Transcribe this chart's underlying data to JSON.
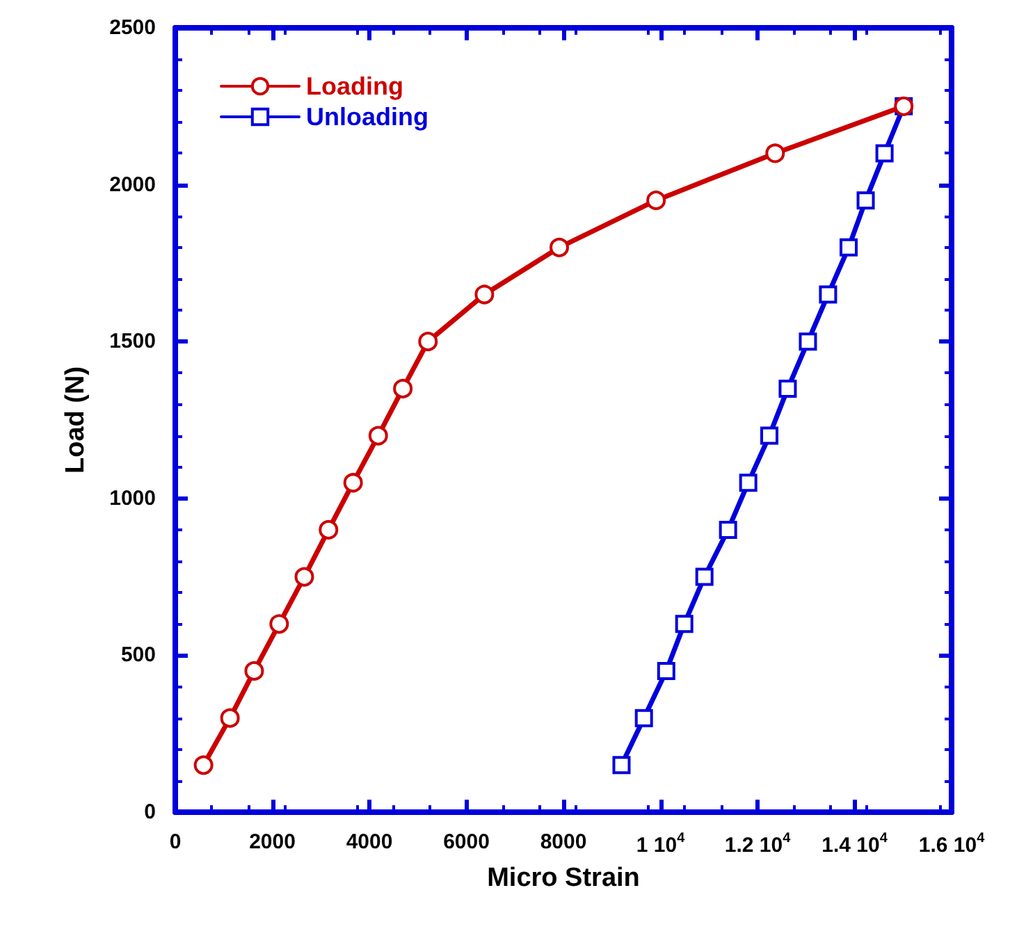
{
  "chart_data": {
    "type": "line",
    "xlabel": "Micro Strain",
    "ylabel": "Load (N)",
    "series": [
      {
        "name": "Loading",
        "color": "#cc0000",
        "marker": "circle",
        "x": [
          582,
          1127,
          1626,
          2141,
          2659,
          3158,
          3665,
          4183,
          4690,
          5208,
          6371,
          7914,
          9909,
          12363,
          15014
        ],
        "values": [
          150,
          300,
          450,
          600,
          750,
          900,
          1050,
          1200,
          1350,
          1500,
          1650,
          1800,
          1950,
          2100,
          2250
        ]
      },
      {
        "name": "Unloading",
        "color": "#0000dd",
        "marker": "square",
        "x": [
          9197,
          9659,
          10119,
          10490,
          10906,
          11393,
          11809,
          12244,
          12623,
          13039,
          13454,
          13878,
          14230,
          14618,
          15014
        ],
        "values": [
          150,
          300,
          450,
          600,
          750,
          900,
          1050,
          1200,
          1350,
          1500,
          1650,
          1800,
          1950,
          2100,
          2250
        ]
      }
    ],
    "xlim": [
      0,
      16000
    ],
    "xticks": [
      0,
      2000,
      4000,
      6000,
      8000,
      {
        "value": 10000,
        "label": "1 10$^{4}$"
      },
      {
        "value": 12000,
        "label": "1.2 10$^{4}$"
      },
      {
        "value": 14000,
        "label": "1.4 10$^{4}$"
      },
      {
        "value": 16000,
        "label": "1.6 10$^{4}$"
      }
    ],
    "ylim": [
      0,
      2500
    ],
    "yticks": [
      0,
      500,
      1000,
      1500,
      2000,
      2500
    ],
    "grid": false,
    "legend": "top left",
    "line_style": "solid"
  }
}
